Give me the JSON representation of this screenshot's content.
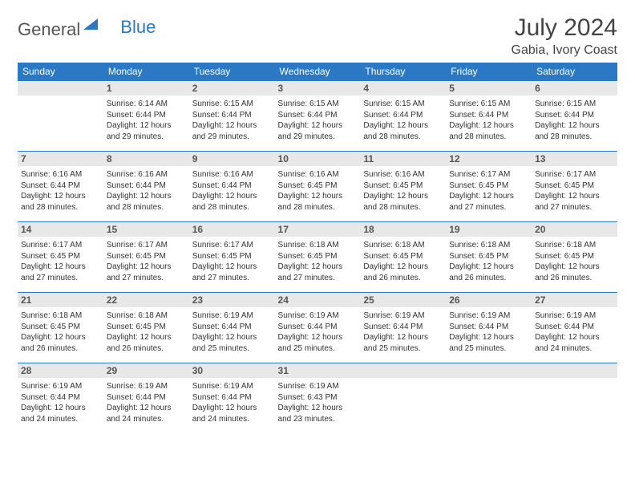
{
  "brand": {
    "name1": "General",
    "name2": "Blue"
  },
  "title": "July 2024",
  "location": "Gabia, Ivory Coast",
  "colors": {
    "header_bg": "#2b78c4",
    "header_fg": "#ffffff",
    "daynum_bg": "#e8e8e8",
    "week_border": "#2b78c4",
    "text": "#333333",
    "brand_gray": "#555555",
    "brand_blue": "#2b78c4"
  },
  "daysOfWeek": [
    "Sunday",
    "Monday",
    "Tuesday",
    "Wednesday",
    "Thursday",
    "Friday",
    "Saturday"
  ],
  "weeks": [
    [
      null,
      {
        "n": "1",
        "sr": "Sunrise: 6:14 AM",
        "ss": "Sunset: 6:44 PM",
        "d1": "Daylight: 12 hours",
        "d2": "and 29 minutes."
      },
      {
        "n": "2",
        "sr": "Sunrise: 6:15 AM",
        "ss": "Sunset: 6:44 PM",
        "d1": "Daylight: 12 hours",
        "d2": "and 29 minutes."
      },
      {
        "n": "3",
        "sr": "Sunrise: 6:15 AM",
        "ss": "Sunset: 6:44 PM",
        "d1": "Daylight: 12 hours",
        "d2": "and 29 minutes."
      },
      {
        "n": "4",
        "sr": "Sunrise: 6:15 AM",
        "ss": "Sunset: 6:44 PM",
        "d1": "Daylight: 12 hours",
        "d2": "and 28 minutes."
      },
      {
        "n": "5",
        "sr": "Sunrise: 6:15 AM",
        "ss": "Sunset: 6:44 PM",
        "d1": "Daylight: 12 hours",
        "d2": "and 28 minutes."
      },
      {
        "n": "6",
        "sr": "Sunrise: 6:15 AM",
        "ss": "Sunset: 6:44 PM",
        "d1": "Daylight: 12 hours",
        "d2": "and 28 minutes."
      }
    ],
    [
      {
        "n": "7",
        "sr": "Sunrise: 6:16 AM",
        "ss": "Sunset: 6:44 PM",
        "d1": "Daylight: 12 hours",
        "d2": "and 28 minutes."
      },
      {
        "n": "8",
        "sr": "Sunrise: 6:16 AM",
        "ss": "Sunset: 6:44 PM",
        "d1": "Daylight: 12 hours",
        "d2": "and 28 minutes."
      },
      {
        "n": "9",
        "sr": "Sunrise: 6:16 AM",
        "ss": "Sunset: 6:44 PM",
        "d1": "Daylight: 12 hours",
        "d2": "and 28 minutes."
      },
      {
        "n": "10",
        "sr": "Sunrise: 6:16 AM",
        "ss": "Sunset: 6:45 PM",
        "d1": "Daylight: 12 hours",
        "d2": "and 28 minutes."
      },
      {
        "n": "11",
        "sr": "Sunrise: 6:16 AM",
        "ss": "Sunset: 6:45 PM",
        "d1": "Daylight: 12 hours",
        "d2": "and 28 minutes."
      },
      {
        "n": "12",
        "sr": "Sunrise: 6:17 AM",
        "ss": "Sunset: 6:45 PM",
        "d1": "Daylight: 12 hours",
        "d2": "and 27 minutes."
      },
      {
        "n": "13",
        "sr": "Sunrise: 6:17 AM",
        "ss": "Sunset: 6:45 PM",
        "d1": "Daylight: 12 hours",
        "d2": "and 27 minutes."
      }
    ],
    [
      {
        "n": "14",
        "sr": "Sunrise: 6:17 AM",
        "ss": "Sunset: 6:45 PM",
        "d1": "Daylight: 12 hours",
        "d2": "and 27 minutes."
      },
      {
        "n": "15",
        "sr": "Sunrise: 6:17 AM",
        "ss": "Sunset: 6:45 PM",
        "d1": "Daylight: 12 hours",
        "d2": "and 27 minutes."
      },
      {
        "n": "16",
        "sr": "Sunrise: 6:17 AM",
        "ss": "Sunset: 6:45 PM",
        "d1": "Daylight: 12 hours",
        "d2": "and 27 minutes."
      },
      {
        "n": "17",
        "sr": "Sunrise: 6:18 AM",
        "ss": "Sunset: 6:45 PM",
        "d1": "Daylight: 12 hours",
        "d2": "and 27 minutes."
      },
      {
        "n": "18",
        "sr": "Sunrise: 6:18 AM",
        "ss": "Sunset: 6:45 PM",
        "d1": "Daylight: 12 hours",
        "d2": "and 26 minutes."
      },
      {
        "n": "19",
        "sr": "Sunrise: 6:18 AM",
        "ss": "Sunset: 6:45 PM",
        "d1": "Daylight: 12 hours",
        "d2": "and 26 minutes."
      },
      {
        "n": "20",
        "sr": "Sunrise: 6:18 AM",
        "ss": "Sunset: 6:45 PM",
        "d1": "Daylight: 12 hours",
        "d2": "and 26 minutes."
      }
    ],
    [
      {
        "n": "21",
        "sr": "Sunrise: 6:18 AM",
        "ss": "Sunset: 6:45 PM",
        "d1": "Daylight: 12 hours",
        "d2": "and 26 minutes."
      },
      {
        "n": "22",
        "sr": "Sunrise: 6:18 AM",
        "ss": "Sunset: 6:45 PM",
        "d1": "Daylight: 12 hours",
        "d2": "and 26 minutes."
      },
      {
        "n": "23",
        "sr": "Sunrise: 6:19 AM",
        "ss": "Sunset: 6:44 PM",
        "d1": "Daylight: 12 hours",
        "d2": "and 25 minutes."
      },
      {
        "n": "24",
        "sr": "Sunrise: 6:19 AM",
        "ss": "Sunset: 6:44 PM",
        "d1": "Daylight: 12 hours",
        "d2": "and 25 minutes."
      },
      {
        "n": "25",
        "sr": "Sunrise: 6:19 AM",
        "ss": "Sunset: 6:44 PM",
        "d1": "Daylight: 12 hours",
        "d2": "and 25 minutes."
      },
      {
        "n": "26",
        "sr": "Sunrise: 6:19 AM",
        "ss": "Sunset: 6:44 PM",
        "d1": "Daylight: 12 hours",
        "d2": "and 25 minutes."
      },
      {
        "n": "27",
        "sr": "Sunrise: 6:19 AM",
        "ss": "Sunset: 6:44 PM",
        "d1": "Daylight: 12 hours",
        "d2": "and 24 minutes."
      }
    ],
    [
      {
        "n": "28",
        "sr": "Sunrise: 6:19 AM",
        "ss": "Sunset: 6:44 PM",
        "d1": "Daylight: 12 hours",
        "d2": "and 24 minutes."
      },
      {
        "n": "29",
        "sr": "Sunrise: 6:19 AM",
        "ss": "Sunset: 6:44 PM",
        "d1": "Daylight: 12 hours",
        "d2": "and 24 minutes."
      },
      {
        "n": "30",
        "sr": "Sunrise: 6:19 AM",
        "ss": "Sunset: 6:44 PM",
        "d1": "Daylight: 12 hours",
        "d2": "and 24 minutes."
      },
      {
        "n": "31",
        "sr": "Sunrise: 6:19 AM",
        "ss": "Sunset: 6:43 PM",
        "d1": "Daylight: 12 hours",
        "d2": "and 23 minutes."
      },
      null,
      null,
      null
    ]
  ]
}
